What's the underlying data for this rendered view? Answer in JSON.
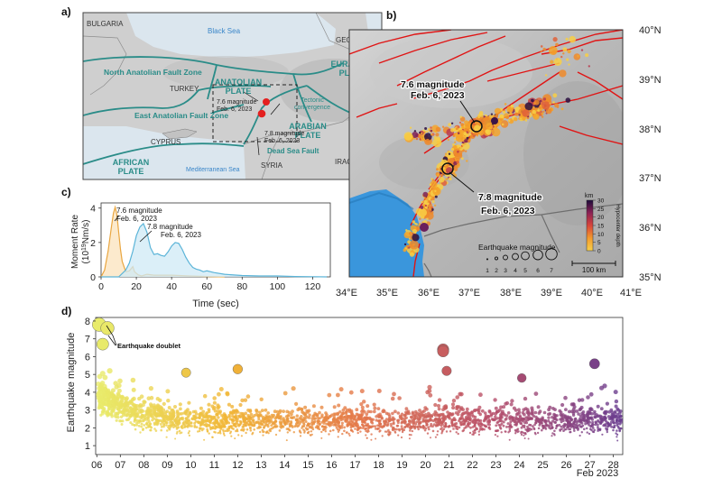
{
  "figure": {
    "panel_labels": [
      "a)",
      "b)",
      "c)",
      "d)"
    ]
  },
  "panel_a": {
    "places": {
      "bulgaria": "BULGARIA",
      "black_sea": "Black Sea",
      "georgia": "GEORGIA",
      "turkey": "TURKEY",
      "cyprus": "CYPRUS",
      "syria": "SYRIA",
      "iraq": "IRAQ",
      "mediterranean": "Mediterranean Sea"
    },
    "plates": {
      "anatolian": [
        "ANATOLIAN",
        "PLATE"
      ],
      "eurasian": [
        "EURASIAN",
        "PLATE"
      ],
      "arabian": [
        "ARABIAN",
        "PLATE"
      ],
      "african": [
        "AFRICAN",
        "PLATE"
      ]
    },
    "faults": {
      "north_anatolian": "North Anatolian Fault Zone",
      "east_anatolian": "East Anatolian Fault Zone",
      "dead_sea": "Dead Sea Fault",
      "tectonic": [
        "Tectonic",
        "convergence"
      ]
    },
    "quakes": {
      "q76": [
        "7.6 magnitude",
        "Feb. 6, 2023"
      ],
      "q78": [
        "7.8 magnitude",
        "Feb. 6, 2023"
      ]
    },
    "colors": {
      "plate_boundary": "#2a8c88",
      "quake": "#e4201f",
      "sea": "#dde8ef"
    }
  },
  "panel_b": {
    "lat_labels": [
      "40°N",
      "39°N",
      "38°N",
      "37°N",
      "36°N",
      "35°N"
    ],
    "lon_labels": [
      "34°E",
      "35°E",
      "36°E",
      "37°E",
      "38°E",
      "39°E",
      "40°E",
      "41°E"
    ],
    "annot_76": [
      "7.6 magnitude",
      "Feb. 6, 2023"
    ],
    "annot_78": [
      "7.8 magnitude",
      "Feb. 6, 2023"
    ],
    "depth_legend": {
      "unit": "km",
      "ticks": [
        "30",
        "25",
        "20",
        "15",
        "10",
        "5",
        "0"
      ],
      "title": "Hypocenter depth"
    },
    "mag_legend": {
      "title": "Earthquake magnitude",
      "values": [
        "1",
        "2",
        "3",
        "4",
        "5",
        "6",
        "7"
      ]
    },
    "scalebar": "100 km",
    "colors": {
      "fault": "#e01414",
      "sea": "#3a96dc",
      "quake": "#f5a52a"
    }
  },
  "chart_data": [
    {
      "panel": "c",
      "type": "area",
      "xlabel": "Time (sec)",
      "ylabel": [
        "Moment Rate",
        "(10",
        "19",
        "Nm/s)"
      ],
      "xlim": [
        0,
        130
      ],
      "ylim": [
        0,
        4.3
      ],
      "x_ticks": [
        0,
        20,
        40,
        60,
        80,
        100,
        120
      ],
      "y_ticks": [
        0,
        2,
        4
      ],
      "series": [
        {
          "name": "7.6 magnitude Feb. 6, 2023",
          "color": "#e9a640",
          "fill": "#fbe6c4",
          "x": [
            0,
            2,
            4,
            6,
            7,
            8,
            9,
            10,
            11,
            12,
            14,
            16,
            18,
            19,
            21,
            23,
            26,
            30,
            40,
            50,
            60,
            70
          ],
          "y": [
            0,
            0.4,
            1.5,
            3.0,
            3.7,
            4.05,
            3.6,
            2.6,
            1.6,
            0.9,
            0.3,
            0.35,
            0.6,
            0.3,
            0.12,
            0.05,
            0.15,
            0.1,
            0.1,
            0.05,
            0.02,
            0
          ]
        },
        {
          "name": "7.8 magnitude Feb. 6, 2023",
          "color": "#5bb4d8",
          "fill": "#cfe9f5",
          "x": [
            0,
            10,
            14,
            16,
            18,
            20,
            22,
            24,
            26,
            28,
            30,
            32,
            34,
            36,
            38,
            40,
            42,
            44,
            46,
            48,
            50,
            52,
            54,
            56,
            58,
            60,
            64,
            70,
            80,
            90,
            100,
            110,
            120,
            128
          ],
          "y": [
            0,
            0,
            0.4,
            0.8,
            1.5,
            2.4,
            2.9,
            3.1,
            2.6,
            1.7,
            1.3,
            1.35,
            1.25,
            1.2,
            1.45,
            1.8,
            2.0,
            1.95,
            1.6,
            1.15,
            0.8,
            0.55,
            0.45,
            0.4,
            0.3,
            0.35,
            0.25,
            0.15,
            0.08,
            0.05,
            0.05,
            0.02,
            0.01,
            0
          ]
        }
      ],
      "annotations": [
        [
          "7.6 magnitude",
          "Feb. 6, 2023"
        ],
        [
          "7.8 magnitude",
          "Feb. 6, 2023"
        ]
      ]
    },
    {
      "panel": "d",
      "type": "scatter",
      "xlabel": "Feb 2023",
      "ylabel": "Earthquake magnitude",
      "xlim": [
        5.95,
        28.4
      ],
      "ylim": [
        0.5,
        8.2
      ],
      "x_ticks": [
        "06",
        "07",
        "08",
        "09",
        "10",
        "11",
        "12",
        "13",
        "14",
        "15",
        "16",
        "17",
        "18",
        "19",
        "20",
        "21",
        "22",
        "23",
        "24",
        "25",
        "26",
        "27",
        "28"
      ],
      "y_ticks": [
        1,
        2,
        3,
        4,
        5,
        6,
        7,
        8
      ],
      "color_ramp": [
        "#e8ec6c",
        "#f1b637",
        "#e4784a",
        "#b84f6a",
        "#6a3d8f"
      ],
      "annotation": "Earthquake doublet",
      "highlights": [
        {
          "x": 6.1,
          "y": 7.8
        },
        {
          "x": 6.45,
          "y": 7.6
        },
        {
          "x": 6.25,
          "y": 6.7
        },
        {
          "x": 20.75,
          "y": 6.4
        },
        {
          "x": 20.75,
          "y": 6.3
        },
        {
          "x": 27.2,
          "y": 5.6
        },
        {
          "x": 20.9,
          "y": 5.2
        },
        {
          "x": 12.0,
          "y": 5.3
        },
        {
          "x": 9.8,
          "y": 5.1
        },
        {
          "x": 24.1,
          "y": 4.8
        }
      ]
    }
  ]
}
